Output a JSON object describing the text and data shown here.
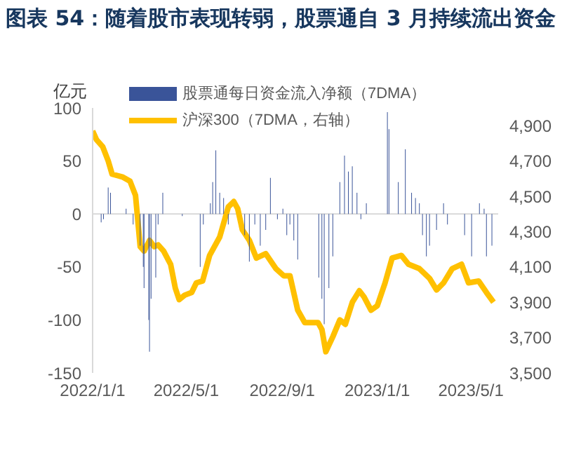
{
  "chart_data": {
    "type": "bar",
    "title": "图表 54：随着股市表现转弱，股票通自 3 月持续流出资金",
    "ylabel": "亿元",
    "legend": "top",
    "ylim": [
      -150,
      100
    ],
    "yticks": [
      -150,
      -100,
      -50,
      0,
      50,
      100
    ],
    "y2lim": [
      3500,
      5000
    ],
    "y2ticks": [
      {
        "value": 3500,
        "label": "3,500"
      },
      {
        "value": 3700,
        "label": "3,700"
      },
      {
        "value": 3900,
        "label": "3,900"
      },
      {
        "value": 4100,
        "label": "4,100"
      },
      {
        "value": 4300,
        "label": "4,300"
      },
      {
        "value": 4500,
        "label": "4,500"
      },
      {
        "value": 4700,
        "label": "4,700"
      },
      {
        "value": 4900,
        "label": "4,900"
      }
    ],
    "xlim": [
      "2022-01-01",
      "2023-06-05"
    ],
    "xticks": [
      {
        "value": "2022-01-01",
        "label": "2022/1/1"
      },
      {
        "value": "2022-05-01",
        "label": "2022/5/1"
      },
      {
        "value": "2022-09-01",
        "label": "2022/9/1"
      },
      {
        "value": "2023-01-01",
        "label": "2023/1/1"
      },
      {
        "value": "2023-05-01",
        "label": "2023/5/1"
      }
    ],
    "ref_lines": [
      {
        "axis": "y",
        "value": 0,
        "color": "#d9d9d9"
      }
    ],
    "series": [
      {
        "name": "股票通每日资金流入净额（7DMA）",
        "color": "#3a5499",
        "x": [
          "2022-01-12",
          "2022-01-15",
          "2022-01-21",
          "2022-01-24",
          "2022-02-13",
          "2022-02-22",
          "2022-03-03",
          "2022-03-07",
          "2022-03-08",
          "2022-03-14",
          "2022-03-15",
          "2022-03-17",
          "2022-03-23",
          "2022-03-26",
          "2022-04-01",
          "2022-04-26",
          "2022-05-19",
          "2022-05-23",
          "2022-06-01",
          "2022-06-04",
          "2022-06-08",
          "2022-06-13",
          "2022-06-18",
          "2022-06-24",
          "2022-07-15",
          "2022-07-21",
          "2022-07-28",
          "2022-08-04",
          "2022-08-11",
          "2022-08-17",
          "2022-08-26",
          "2022-09-02",
          "2022-09-07",
          "2022-09-11",
          "2022-09-16",
          "2022-09-21",
          "2022-10-18",
          "2022-10-22",
          "2022-10-25",
          "2022-10-31",
          "2022-11-05",
          "2022-11-14",
          "2022-11-20",
          "2022-11-25",
          "2022-11-30",
          "2022-12-06",
          "2022-12-11",
          "2022-12-18",
          "2023-01-14",
          "2023-01-16",
          "2023-01-28",
          "2023-02-06",
          "2023-02-14",
          "2023-02-19",
          "2023-02-24",
          "2023-02-28",
          "2023-03-05",
          "2023-03-09",
          "2023-03-18",
          "2023-03-27",
          "2023-04-01",
          "2023-04-23",
          "2023-05-02",
          "2023-05-12",
          "2023-05-18",
          "2023-05-21",
          "2023-05-28"
        ],
        "values": [
          -8,
          -5,
          25,
          20,
          5,
          -10,
          -30,
          -50,
          -70,
          -100,
          -130,
          -80,
          -60,
          -10,
          20,
          -2,
          -50,
          -10,
          10,
          30,
          60,
          20,
          15,
          -10,
          -20,
          -45,
          -10,
          -30,
          -15,
          34,
          -5,
          5,
          -20,
          -10,
          -25,
          -43,
          -60,
          -80,
          -104,
          -70,
          -40,
          30,
          55,
          40,
          45,
          20,
          -5,
          10,
          96,
          80,
          30,
          61,
          20,
          15,
          10,
          -20,
          -40,
          -30,
          -15,
          10,
          -10,
          -20,
          -40,
          10,
          5,
          -40,
          -30
        ]
      },
      {
        "name": "沪深300（7DMA，右轴）",
        "type": "line",
        "axis": "y2",
        "color": "#ffc000",
        "marker": "none",
        "x": [
          "2022-01-01",
          "2022-01-06",
          "2022-01-14",
          "2022-01-21",
          "2022-01-26",
          "2022-02-08",
          "2022-02-18",
          "2022-02-25",
          "2022-03-03",
          "2022-03-08",
          "2022-03-15",
          "2022-03-21",
          "2022-03-26",
          "2022-04-02",
          "2022-04-11",
          "2022-04-17",
          "2022-04-22",
          "2022-04-29",
          "2022-05-08",
          "2022-05-14",
          "2022-05-22",
          "2022-05-31",
          "2022-06-13",
          "2022-06-24",
          "2022-07-01",
          "2022-07-06",
          "2022-07-12",
          "2022-07-21",
          "2022-07-30",
          "2022-08-11",
          "2022-08-24",
          "2022-09-03",
          "2022-09-11",
          "2022-09-21",
          "2022-09-30",
          "2022-10-17",
          "2022-10-22",
          "2022-10-27",
          "2022-11-05",
          "2022-11-14",
          "2022-11-21",
          "2022-11-30",
          "2022-12-09",
          "2022-12-15",
          "2022-12-24",
          "2023-01-01",
          "2023-01-11",
          "2023-01-20",
          "2023-02-01",
          "2023-02-10",
          "2023-02-24",
          "2023-03-09",
          "2023-03-18",
          "2023-03-27",
          "2023-04-07",
          "2023-04-19",
          "2023-04-28",
          "2023-05-11",
          "2023-05-21",
          "2023-05-30"
        ],
        "values": [
          4870,
          4820,
          4780,
          4700,
          4625,
          4610,
          4585,
          4505,
          4215,
          4190,
          4250,
          4215,
          4225,
          4190,
          4115,
          3980,
          3915,
          3940,
          3955,
          4010,
          4020,
          4165,
          4270,
          4440,
          4470,
          4430,
          4310,
          4250,
          4150,
          4175,
          4090,
          4050,
          4050,
          3855,
          3785,
          3785,
          3745,
          3620,
          3705,
          3800,
          3775,
          3900,
          3965,
          3930,
          3855,
          3880,
          4010,
          4150,
          4165,
          4115,
          4090,
          4035,
          3970,
          4010,
          4090,
          4115,
          4010,
          4020,
          3955,
          3900
        ]
      }
    ]
  }
}
